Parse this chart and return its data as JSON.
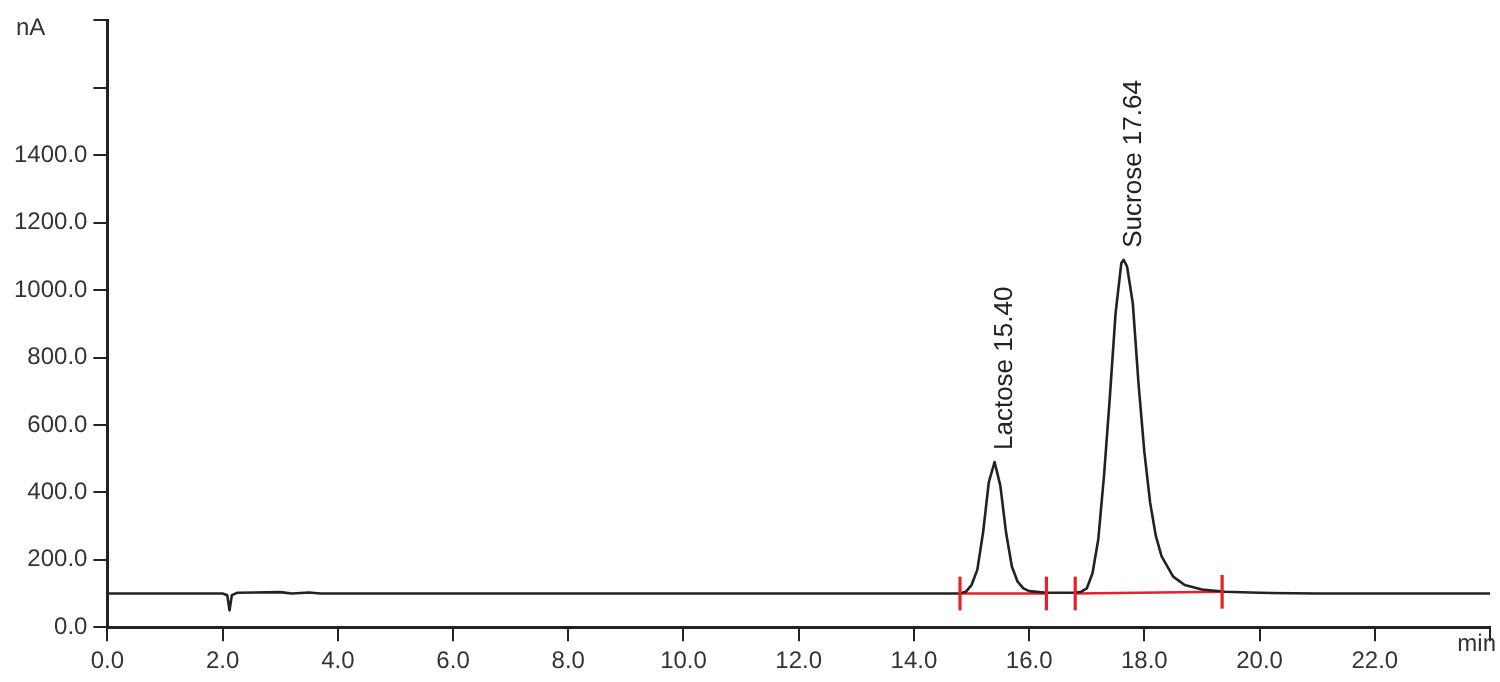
{
  "chart_data": {
    "type": "line",
    "xlabel": "min",
    "ylabel": "nA",
    "xlim": [
      0,
      24
    ],
    "xticks": [
      {
        "value": 0,
        "label": "0.0"
      },
      {
        "value": 2,
        "label": "2.0"
      },
      {
        "value": 4,
        "label": "4.0"
      },
      {
        "value": 6,
        "label": "6.0"
      },
      {
        "value": 8,
        "label": "8.0"
      },
      {
        "value": 10,
        "label": "10.0"
      },
      {
        "value": 12,
        "label": "12.0"
      },
      {
        "value": 14,
        "label": "14.0"
      },
      {
        "value": 16,
        "label": "16.0"
      },
      {
        "value": 18,
        "label": "18.0"
      },
      {
        "value": 20,
        "label": "20.0"
      },
      {
        "value": 22,
        "label": "22.0"
      },
      {
        "value": 24,
        "label": null
      }
    ],
    "ylim": [
      0,
      1800
    ],
    "yticks": [
      {
        "value": 0,
        "label": "0.0"
      },
      {
        "value": 200,
        "label": "200.0"
      },
      {
        "value": 400,
        "label": "400.0"
      },
      {
        "value": 600,
        "label": "600.0"
      },
      {
        "value": 800,
        "label": "800.0"
      },
      {
        "value": 1000,
        "label": "1000.0"
      },
      {
        "value": 1200,
        "label": "1200.0"
      },
      {
        "value": 1400,
        "label": "1400.0"
      },
      {
        "value": 1600,
        "label": null
      },
      {
        "value": 1800,
        "label": null
      }
    ],
    "grid": false,
    "legend": false,
    "marker": "none",
    "line_style": "solid",
    "series": [
      {
        "color": "#222222",
        "x": [
          0,
          2.0,
          2.08,
          2.12,
          2.16,
          2.25,
          3.0,
          3.2,
          3.5,
          3.7,
          14.8,
          14.9,
          15.0,
          15.1,
          15.2,
          15.3,
          15.4,
          15.5,
          15.6,
          15.7,
          15.8,
          15.9,
          16.0,
          16.3,
          16.8,
          16.9,
          17.0,
          17.1,
          17.2,
          17.3,
          17.4,
          17.5,
          17.6,
          17.64,
          17.7,
          17.8,
          17.9,
          18.0,
          18.1,
          18.2,
          18.3,
          18.5,
          18.7,
          19.0,
          19.4,
          20.0,
          21.0,
          24.0
        ],
        "values": [
          100,
          100,
          95,
          50,
          95,
          102,
          104,
          100,
          103,
          100,
          100,
          105,
          125,
          170,
          280,
          430,
          490,
          420,
          280,
          180,
          135,
          115,
          107,
          102,
          102,
          105,
          115,
          160,
          260,
          450,
          680,
          930,
          1080,
          1090,
          1070,
          960,
          720,
          520,
          370,
          270,
          210,
          150,
          125,
          112,
          105,
          102,
          100,
          100
        ]
      },
      {
        "color": "#e8202a",
        "x": [
          14.8,
          16.3
        ],
        "values": [
          100,
          100
        ],
        "errors": [
          50,
          50
        ]
      },
      {
        "color": "#e8202a",
        "x": [
          16.8,
          19.35
        ],
        "values": [
          100,
          105
        ],
        "errors": [
          50,
          50
        ]
      }
    ],
    "annotations": [
      {
        "text": "Lactose 15.40",
        "x": 15.4,
        "y": 490
      },
      {
        "text": "Sucrose 17.64",
        "x": 17.64,
        "y": 1090
      }
    ]
  }
}
